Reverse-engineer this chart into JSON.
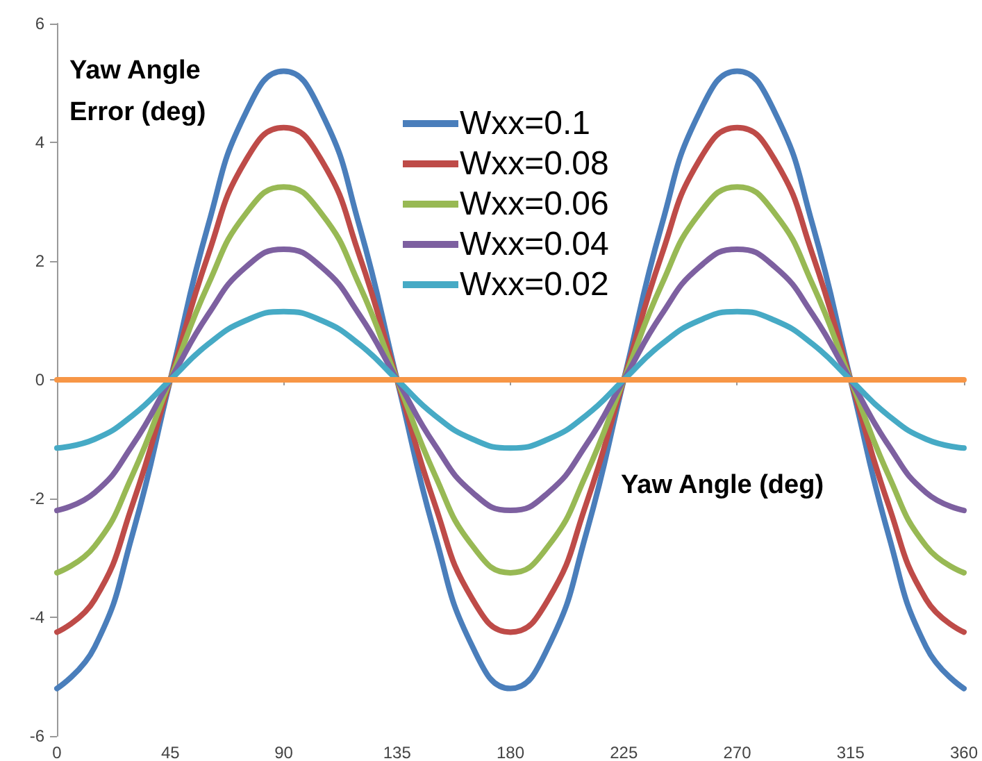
{
  "chart_data": {
    "type": "line",
    "xlabel": "Yaw Angle (deg)",
    "ylabel": "Yaw Angle Error (deg)",
    "x": [
      0,
      15,
      30,
      45,
      60,
      75,
      90,
      105,
      120,
      135,
      150,
      165,
      180,
      195,
      210,
      225,
      240,
      255,
      270,
      285,
      300,
      315,
      330,
      345,
      360
    ],
    "series": [
      {
        "name": "Wxx=0.1",
        "color": "#4a7ebb",
        "values": [
          -5.2,
          -4.5,
          -2.6,
          0,
          2.6,
          4.5,
          5.2,
          4.5,
          2.6,
          0,
          -2.6,
          -4.5,
          -5.2,
          -4.5,
          -2.6,
          0,
          2.6,
          4.5,
          5.2,
          4.5,
          2.6,
          0,
          -2.6,
          -4.5,
          -5.2
        ]
      },
      {
        "name": "Wxx=0.08",
        "color": "#be4b48",
        "values": [
          -4.25,
          -3.7,
          -2.1,
          0,
          2.1,
          3.7,
          4.25,
          3.7,
          2.1,
          0,
          -2.1,
          -3.7,
          -4.25,
          -3.7,
          -2.1,
          0,
          2.1,
          3.7,
          4.25,
          3.7,
          2.1,
          0,
          -2.1,
          -3.7,
          -4.25
        ]
      },
      {
        "name": "Wxx=0.06",
        "color": "#98b954",
        "values": [
          -3.25,
          -2.8,
          -1.6,
          0,
          1.6,
          2.8,
          3.25,
          2.8,
          1.6,
          0,
          -1.6,
          -2.8,
          -3.25,
          -2.8,
          -1.6,
          0,
          1.6,
          2.8,
          3.25,
          2.8,
          1.6,
          0,
          -1.6,
          -2.8,
          -3.25
        ]
      },
      {
        "name": "Wxx=0.04",
        "color": "#7d60a0",
        "values": [
          -2.2,
          -1.9,
          -1.1,
          0,
          1.1,
          1.9,
          2.2,
          1.9,
          1.1,
          0,
          -1.1,
          -1.9,
          -2.2,
          -1.9,
          -1.1,
          0,
          1.1,
          1.9,
          2.2,
          1.9,
          1.1,
          0,
          -1.1,
          -1.9,
          -2.2
        ]
      },
      {
        "name": "Wxx=0.02",
        "color": "#46aac5",
        "values": [
          -1.15,
          -1.0,
          -0.6,
          0,
          0.6,
          1.0,
          1.15,
          1.0,
          0.6,
          0,
          -0.6,
          -1.0,
          -1.15,
          -1.0,
          -0.6,
          0,
          0.6,
          1.0,
          1.15,
          1.0,
          0.6,
          0,
          -0.6,
          -1.0,
          -1.15
        ]
      },
      {
        "color": "#f79646",
        "values": [
          0,
          0,
          0,
          0,
          0,
          0,
          0,
          0,
          0,
          0,
          0,
          0,
          0,
          0,
          0,
          0,
          0,
          0,
          0,
          0,
          0,
          0,
          0,
          0,
          0
        ]
      }
    ],
    "xlim": [
      0,
      360
    ],
    "xticks": [
      0,
      45,
      90,
      135,
      180,
      225,
      270,
      315,
      360
    ],
    "ylim": [
      -6,
      6
    ],
    "yticks": [
      -6,
      -4,
      -2,
      0,
      2,
      4,
      6
    ],
    "grid": false,
    "legend": "top",
    "marker": "none",
    "line_style": "solid"
  }
}
